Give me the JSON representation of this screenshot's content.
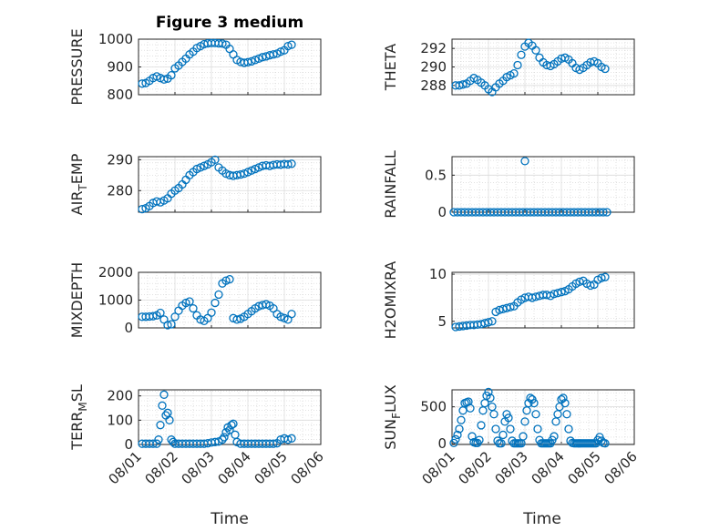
{
  "figure": {
    "title": "Figure 3 medium",
    "marker_color": "#0072BD",
    "x_ticks": [
      "08/01",
      "08/02",
      "08/03",
      "08/04",
      "08/05",
      "08/06"
    ],
    "x_tick_values": [
      0,
      1,
      2,
      3,
      4,
      5
    ],
    "x_range": [
      0,
      5
    ],
    "xlabel": "Time"
  },
  "chart_data": [
    {
      "type": "scatter",
      "name": "pressure",
      "ylabel": "PRESSURE",
      "ylim": [
        800,
        1000
      ],
      "yticks": [
        800,
        900,
        1000
      ],
      "title": "Figure 3 medium",
      "x": [
        0.1,
        0.2,
        0.3,
        0.4,
        0.5,
        0.6,
        0.7,
        0.8,
        0.9,
        1.0,
        1.1,
        1.2,
        1.3,
        1.4,
        1.5,
        1.6,
        1.7,
        1.8,
        1.9,
        2.0,
        2.1,
        2.2,
        2.3,
        2.4,
        2.5,
        2.6,
        2.7,
        2.8,
        2.9,
        3.0,
        3.1,
        3.2,
        3.3,
        3.4,
        3.5,
        3.6,
        3.7,
        3.8,
        3.9,
        4.0,
        4.1,
        4.2
      ],
      "y": [
        840,
        842,
        850,
        860,
        866,
        860,
        855,
        858,
        870,
        895,
        905,
        918,
        930,
        945,
        955,
        968,
        975,
        982,
        985,
        986,
        986,
        985,
        984,
        980,
        965,
        945,
        925,
        918,
        915,
        917,
        920,
        925,
        930,
        935,
        938,
        942,
        945,
        948,
        955,
        960,
        975,
        980
      ]
    },
    {
      "type": "scatter",
      "name": "theta",
      "ylabel": "THETA",
      "ylim": [
        287,
        293
      ],
      "yticks": [
        288,
        290,
        292
      ],
      "x": [
        0.1,
        0.2,
        0.3,
        0.4,
        0.5,
        0.6,
        0.7,
        0.8,
        0.9,
        1.0,
        1.1,
        1.2,
        1.3,
        1.4,
        1.5,
        1.6,
        1.7,
        1.8,
        1.9,
        2.0,
        2.1,
        2.2,
        2.3,
        2.4,
        2.5,
        2.6,
        2.7,
        2.8,
        2.9,
        3.0,
        3.1,
        3.2,
        3.3,
        3.4,
        3.5,
        3.6,
        3.7,
        3.8,
        3.9,
        4.0,
        4.1,
        4.2
      ],
      "y": [
        288.0,
        288.0,
        288.1,
        288.2,
        288.5,
        288.8,
        288.6,
        288.3,
        288.0,
        287.6,
        287.3,
        287.8,
        288.2,
        288.5,
        288.9,
        289.1,
        289.3,
        290.2,
        291.3,
        292.2,
        292.6,
        292.3,
        291.8,
        291.0,
        290.5,
        290.2,
        290.1,
        290.3,
        290.6,
        290.9,
        291.0,
        290.8,
        290.4,
        289.9,
        289.7,
        289.9,
        290.2,
        290.5,
        290.6,
        290.4,
        290.0,
        289.8
      ]
    },
    {
      "type": "scatter",
      "name": "air_temp",
      "ylabel_main": "AIR",
      "ylabel_sub": "T",
      "ylabel_rest": "EMP",
      "ylim": [
        273,
        291
      ],
      "yticks": [
        280,
        290
      ],
      "x": [
        0.1,
        0.2,
        0.3,
        0.4,
        0.5,
        0.6,
        0.7,
        0.8,
        0.9,
        1.0,
        1.1,
        1.2,
        1.3,
        1.4,
        1.5,
        1.6,
        1.7,
        1.8,
        1.9,
        2.0,
        2.1,
        2.2,
        2.3,
        2.4,
        2.5,
        2.6,
        2.7,
        2.8,
        2.9,
        3.0,
        3.1,
        3.2,
        3.3,
        3.4,
        3.5,
        3.6,
        3.7,
        3.8,
        3.9,
        4.0,
        4.1,
        4.2
      ],
      "y": [
        274,
        274.3,
        275,
        276,
        276.5,
        276.2,
        276.8,
        277.5,
        279,
        280,
        280.8,
        282,
        283.5,
        285,
        286,
        287,
        287.5,
        288,
        288.5,
        289.2,
        290,
        287.5,
        286.5,
        285.5,
        285,
        284.8,
        285,
        285.2,
        285.5,
        286,
        286.5,
        287,
        287.5,
        288,
        288.2,
        288,
        288.3,
        288.5,
        288.4,
        288.6,
        288.5,
        288.7
      ]
    },
    {
      "type": "scatter",
      "name": "rainfall",
      "ylabel": "RAINFALL",
      "ylim": [
        0,
        0.75
      ],
      "yticks": [
        0,
        0.5
      ],
      "ytick_labels": [
        "0",
        "0.5"
      ],
      "x": [
        0.05,
        0.15,
        0.25,
        0.35,
        0.45,
        0.55,
        0.65,
        0.75,
        0.85,
        0.95,
        1.05,
        1.15,
        1.25,
        1.35,
        1.45,
        1.55,
        1.65,
        1.75,
        1.85,
        1.95,
        2.0,
        2.05,
        2.15,
        2.25,
        2.35,
        2.45,
        2.55,
        2.65,
        2.75,
        2.85,
        2.95,
        3.05,
        3.15,
        3.25,
        3.35,
        3.45,
        3.55,
        3.65,
        3.75,
        3.85,
        3.95,
        4.05,
        4.15,
        4.25
      ],
      "y": [
        0,
        0,
        0,
        0,
        0,
        0,
        0,
        0,
        0,
        0,
        0,
        0,
        0,
        0,
        0,
        0,
        0,
        0,
        0,
        0,
        0.69,
        0,
        0,
        0,
        0,
        0,
        0,
        0,
        0,
        0,
        0,
        0,
        0,
        0,
        0,
        0,
        0,
        0,
        0,
        0,
        0,
        0,
        0,
        0
      ]
    },
    {
      "type": "scatter",
      "name": "mixdepth",
      "ylabel": "MIXDEPTH",
      "ylim": [
        0,
        2000
      ],
      "yticks": [
        0,
        1000,
        2000
      ],
      "x": [
        0.1,
        0.2,
        0.3,
        0.4,
        0.5,
        0.6,
        0.7,
        0.8,
        0.9,
        1.0,
        1.1,
        1.2,
        1.3,
        1.4,
        1.5,
        1.6,
        1.7,
        1.8,
        1.9,
        2.0,
        2.1,
        2.2,
        2.3,
        2.4,
        2.5,
        2.6,
        2.7,
        2.8,
        2.9,
        3.0,
        3.1,
        3.2,
        3.3,
        3.4,
        3.5,
        3.6,
        3.7,
        3.8,
        3.9,
        4.0,
        4.1,
        4.2
      ],
      "y": [
        400,
        400,
        410,
        420,
        450,
        540,
        300,
        100,
        130,
        400,
        620,
        800,
        900,
        950,
        700,
        450,
        300,
        250,
        350,
        550,
        900,
        1200,
        1600,
        1700,
        1750,
        350,
        300,
        330,
        400,
        500,
        600,
        700,
        780,
        820,
        850,
        800,
        700,
        500,
        400,
        350,
        300,
        500
      ]
    },
    {
      "type": "scatter",
      "name": "h2omixra",
      "ylabel": "H2OMIXRA",
      "ylim": [
        4.3,
        10.2
      ],
      "yticks": [
        5,
        10
      ],
      "x": [
        0.1,
        0.2,
        0.3,
        0.4,
        0.5,
        0.6,
        0.7,
        0.8,
        0.9,
        1.0,
        1.1,
        1.2,
        1.3,
        1.4,
        1.5,
        1.6,
        1.7,
        1.8,
        1.9,
        2.0,
        2.1,
        2.2,
        2.3,
        2.4,
        2.5,
        2.6,
        2.7,
        2.8,
        2.9,
        3.0,
        3.1,
        3.2,
        3.3,
        3.4,
        3.5,
        3.6,
        3.7,
        3.8,
        3.9,
        4.0,
        4.1,
        4.2
      ],
      "y": [
        4.4,
        4.45,
        4.5,
        4.55,
        4.6,
        4.6,
        4.65,
        4.7,
        4.8,
        4.9,
        5.0,
        6.0,
        6.2,
        6.3,
        6.4,
        6.5,
        6.6,
        7.0,
        7.3,
        7.5,
        7.6,
        7.5,
        7.6,
        7.7,
        7.8,
        7.8,
        7.7,
        7.9,
        8.0,
        8.1,
        8.2,
        8.4,
        8.7,
        9.0,
        9.2,
        9.3,
        9.0,
        8.8,
        8.9,
        9.4,
        9.6,
        9.7
      ]
    },
    {
      "type": "scatter",
      "name": "terr_msl",
      "ylabel_main": "TERR",
      "ylabel_sub": "M",
      "ylabel_rest": "SL",
      "ylim": [
        0,
        225
      ],
      "yticks": [
        0,
        100,
        200
      ],
      "x": [
        0.1,
        0.2,
        0.3,
        0.4,
        0.5,
        0.55,
        0.6,
        0.65,
        0.7,
        0.75,
        0.8,
        0.85,
        0.9,
        0.95,
        1.0,
        1.1,
        1.2,
        1.3,
        1.4,
        1.5,
        1.6,
        1.7,
        1.8,
        1.9,
        2.0,
        2.1,
        2.2,
        2.3,
        2.35,
        2.4,
        2.45,
        2.5,
        2.55,
        2.6,
        2.65,
        2.7,
        2.8,
        2.9,
        3.0,
        3.1,
        3.2,
        3.3,
        3.4,
        3.5,
        3.6,
        3.7,
        3.8,
        3.9,
        4.0,
        4.1,
        4.2
      ],
      "y": [
        3,
        3,
        3,
        3,
        3,
        20,
        80,
        160,
        205,
        120,
        130,
        100,
        20,
        10,
        3,
        3,
        3,
        3,
        3,
        3,
        3,
        3,
        3,
        5,
        8,
        10,
        12,
        20,
        30,
        50,
        70,
        60,
        80,
        85,
        40,
        10,
        3,
        3,
        3,
        3,
        3,
        3,
        3,
        3,
        3,
        3,
        5,
        20,
        25,
        20,
        25
      ]
    },
    {
      "type": "scatter",
      "name": "sun_flux",
      "ylabel_main": "SUN",
      "ylabel_sub": "F",
      "ylabel_rest": "LUX",
      "ylim": [
        -10,
        730
      ],
      "yticks": [
        0,
        500
      ],
      "x": [
        0.05,
        0.1,
        0.15,
        0.2,
        0.25,
        0.3,
        0.35,
        0.4,
        0.45,
        0.5,
        0.55,
        0.6,
        0.65,
        0.7,
        0.75,
        0.8,
        0.85,
        0.9,
        0.95,
        1.0,
        1.05,
        1.1,
        1.15,
        1.2,
        1.25,
        1.3,
        1.35,
        1.4,
        1.45,
        1.5,
        1.55,
        1.6,
        1.65,
        1.7,
        1.75,
        1.8,
        1.85,
        1.9,
        1.95,
        2.0,
        2.05,
        2.1,
        2.15,
        2.2,
        2.25,
        2.3,
        2.35,
        2.4,
        2.45,
        2.5,
        2.55,
        2.6,
        2.65,
        2.7,
        2.75,
        2.8,
        2.85,
        2.9,
        2.95,
        3.0,
        3.05,
        3.1,
        3.15,
        3.2,
        3.25,
        3.3,
        3.35,
        3.4,
        3.45,
        3.5,
        3.55,
        3.6,
        3.65,
        3.7,
        3.75,
        3.8,
        3.85,
        3.9,
        3.95,
        4.0,
        4.05,
        4.1,
        4.15,
        4.2
      ],
      "y": [
        10,
        60,
        120,
        200,
        320,
        450,
        550,
        560,
        570,
        480,
        100,
        20,
        10,
        10,
        50,
        250,
        450,
        550,
        650,
        700,
        620,
        500,
        400,
        200,
        40,
        5,
        5,
        120,
        300,
        400,
        350,
        200,
        40,
        5,
        5,
        5,
        5,
        5,
        100,
        300,
        450,
        550,
        620,
        600,
        550,
        400,
        200,
        50,
        5,
        5,
        5,
        5,
        5,
        5,
        50,
        100,
        300,
        400,
        500,
        600,
        620,
        550,
        400,
        200,
        40,
        10,
        5,
        5,
        5,
        5,
        5,
        5,
        5,
        5,
        5,
        5,
        5,
        5,
        5,
        50,
        90,
        40,
        10,
        5
      ]
    }
  ]
}
